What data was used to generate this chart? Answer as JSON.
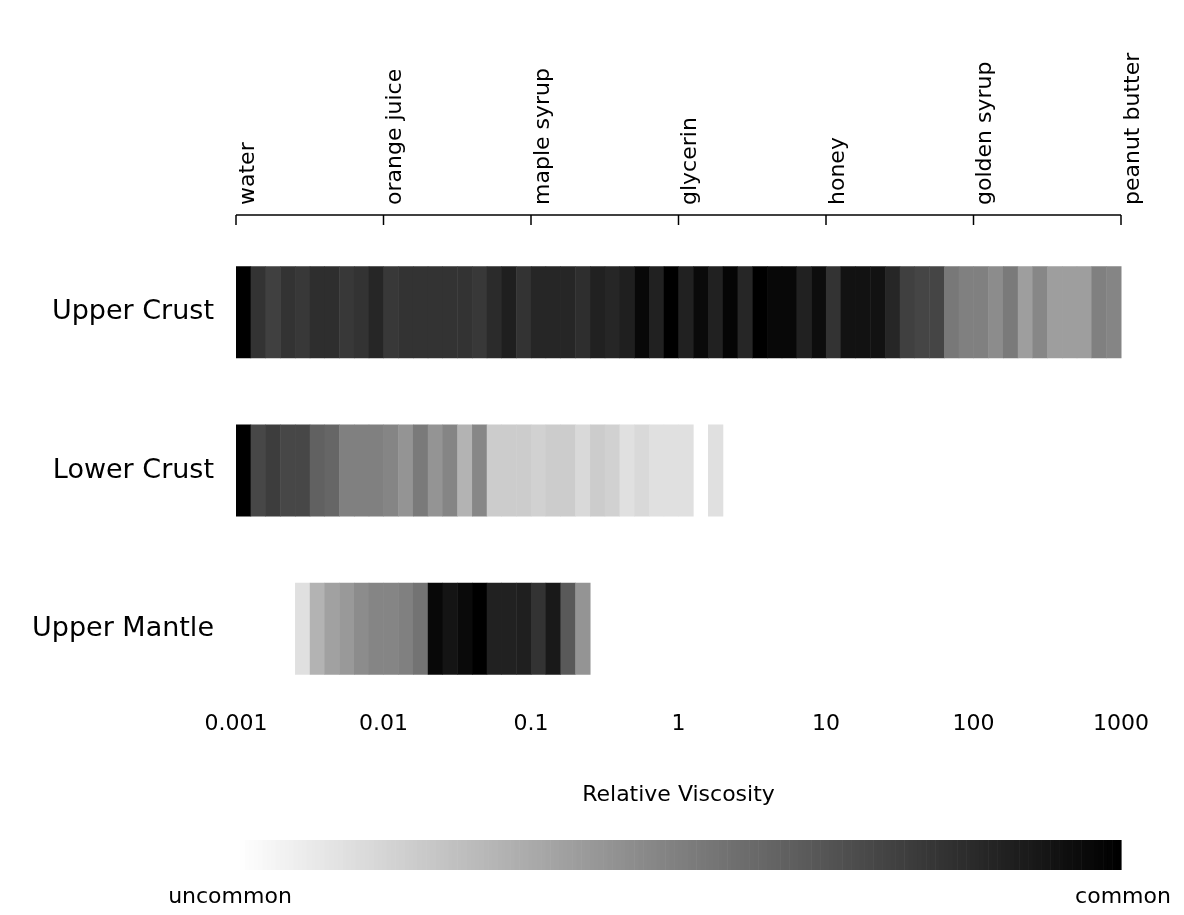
{
  "chart_data": {
    "type": "heatmap",
    "xlabel": "Relative Viscosity",
    "x": [
      0.00112,
      0.00141,
      0.00178,
      0.00224,
      0.00282,
      0.00355,
      0.00447,
      0.00562,
      0.00708,
      0.00891,
      0.0112,
      0.0141,
      0.0178,
      0.0224,
      0.0282,
      0.0355,
      0.0447,
      0.0562,
      0.0708,
      0.0891,
      0.112,
      0.141,
      0.178,
      0.224,
      0.282,
      0.355,
      0.447,
      0.562,
      0.708,
      0.891,
      1.12,
      1.41,
      1.78,
      2.24,
      2.82,
      3.55,
      4.47,
      5.62,
      7.08,
      8.91,
      11.2,
      14.1,
      17.8,
      22.4,
      28.2,
      35.5,
      44.7,
      56.2,
      70.8,
      89.1,
      112,
      141,
      178,
      224,
      282,
      355,
      447,
      562,
      708,
      891
    ],
    "y_categories": [
      "Upper Crust",
      "Lower Crust",
      "Upper Mantle"
    ],
    "cells": [
      [
        1.0,
        0.8,
        0.75,
        0.8,
        0.78,
        0.82,
        0.82,
        0.78,
        0.8,
        0.85,
        0.78,
        0.8,
        0.8,
        0.8,
        0.8,
        0.8,
        0.78,
        0.83,
        0.88,
        0.8,
        0.85,
        0.85,
        0.85,
        0.82,
        0.87,
        0.85,
        0.88,
        0.97,
        0.87,
        1.0,
        0.87,
        0.96,
        0.87,
        0.98,
        0.85,
        1.0,
        0.97,
        0.97,
        0.87,
        0.95,
        0.8,
        0.93,
        0.93,
        0.93,
        0.85,
        0.75,
        0.73,
        0.73,
        0.53,
        0.5,
        0.5,
        0.45,
        0.52,
        0.38,
        0.47,
        0.38,
        0.38,
        0.38,
        0.5,
        0.48
      ],
      [
        1.0,
        0.72,
        0.76,
        0.72,
        0.72,
        0.62,
        0.6,
        0.5,
        0.5,
        0.5,
        0.48,
        0.42,
        0.52,
        0.42,
        0.48,
        0.3,
        0.47,
        0.2,
        0.2,
        0.2,
        0.18,
        0.2,
        0.2,
        0.15,
        0.2,
        0.18,
        0.12,
        0.15,
        0.12,
        0.12,
        0.12,
        null,
        0.12,
        null,
        null,
        null,
        null,
        null,
        null,
        null,
        null,
        null,
        null,
        null,
        null,
        null,
        null,
        null,
        null,
        null,
        null,
        null,
        null,
        null,
        null,
        null,
        null,
        null,
        null,
        null
      ],
      [
        null,
        null,
        null,
        null,
        0.12,
        0.3,
        0.37,
        0.4,
        0.45,
        0.48,
        0.48,
        0.5,
        0.55,
        0.97,
        0.92,
        0.96,
        1.0,
        0.87,
        0.87,
        0.88,
        0.8,
        0.9,
        0.65,
        0.42,
        null,
        null,
        null,
        null,
        null,
        null,
        null,
        null,
        null,
        null,
        null,
        null,
        null,
        null,
        null,
        null,
        null,
        null,
        null,
        null,
        null,
        null,
        null,
        null,
        null,
        null,
        null,
        null,
        null,
        null,
        null,
        null,
        null,
        null,
        null,
        null
      ]
    ],
    "clim": [
      0,
      1
    ],
    "cticks": [
      {
        "value": 0,
        "label": "uncommon"
      },
      {
        "value": 1,
        "label": "common"
      }
    ],
    "log": "x",
    "xlim": [
      0.001,
      1000
    ],
    "xticks": [
      0.001,
      0.01,
      0.1,
      1,
      10,
      100,
      1000
    ],
    "annotations": [
      "water",
      "orange juice",
      "maple syrup",
      "glycerin",
      "honey",
      "golden syrup",
      "peanut butter"
    ],
    "grid": false,
    "legend": false
  }
}
